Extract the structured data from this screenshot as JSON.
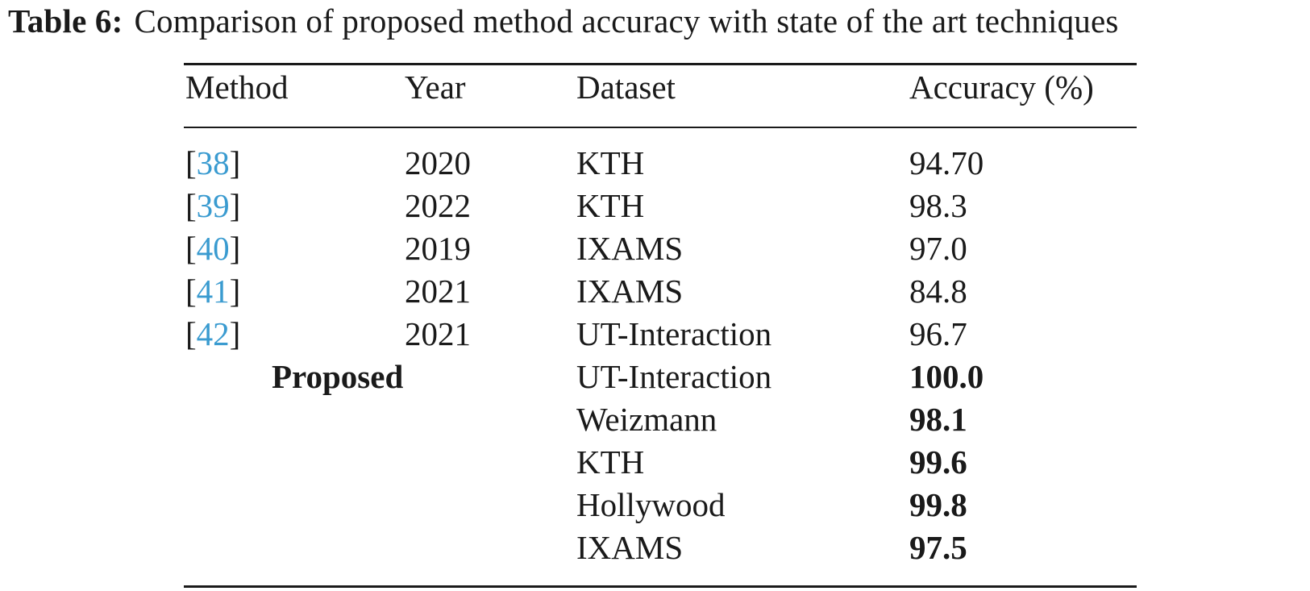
{
  "caption": {
    "label": "Table 6:",
    "text": "Comparison of proposed method accuracy with state of the art techniques"
  },
  "table": {
    "headers": {
      "method": "Method",
      "year": "Year",
      "dataset": "Dataset",
      "accuracy": "Accuracy (%)"
    },
    "rows": [
      {
        "cite": "38",
        "year": "2020",
        "dataset": "KTH",
        "accuracy": "94.70"
      },
      {
        "cite": "39",
        "year": "2022",
        "dataset": "KTH",
        "accuracy": "98.3"
      },
      {
        "cite": "40",
        "year": "2019",
        "dataset": "IXAMS",
        "accuracy": "97.0"
      },
      {
        "cite": "41",
        "year": "2021",
        "dataset": "IXAMS",
        "accuracy": "84.8"
      },
      {
        "cite": "42",
        "year": "2021",
        "dataset": "UT-Interaction",
        "accuracy": "96.7"
      }
    ],
    "proposed": {
      "label": "Proposed",
      "rows": [
        {
          "dataset": "UT-Interaction",
          "accuracy": "100.0"
        },
        {
          "dataset": "Weizmann",
          "accuracy": "98.1"
        },
        {
          "dataset": "KTH",
          "accuracy": "99.6"
        },
        {
          "dataset": "Hollywood",
          "accuracy": "99.8"
        },
        {
          "dataset": "IXAMS",
          "accuracy": "97.5"
        }
      ]
    },
    "colors": {
      "citation": "#3a9bd0",
      "text": "#1a1a1a",
      "rule": "#1a1a1a"
    }
  }
}
